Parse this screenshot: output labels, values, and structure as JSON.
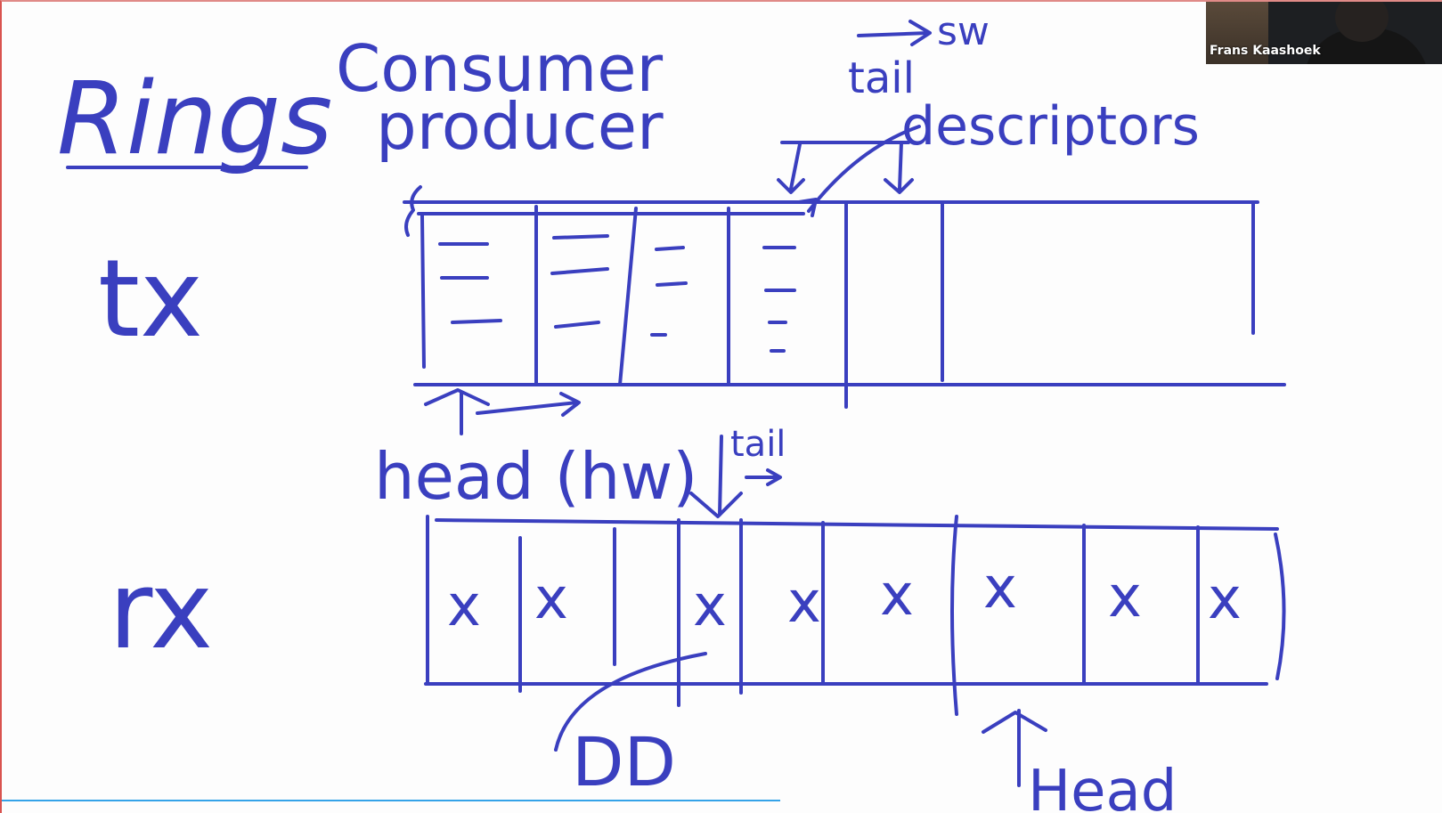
{
  "video_tile": {
    "participant_name": "Frans Kaashoek"
  },
  "whiteboard": {
    "title": "Rings",
    "label_consumer": "Consumer",
    "label_producer": "producer",
    "label_tail_sw_tx": "tail",
    "label_sw": "sw",
    "label_descriptors": "descriptors",
    "label_tx": "tx",
    "label_head_hw": "head (hw)",
    "label_tail_rx": "tail",
    "label_rx": "rx",
    "label_dd": "DD",
    "label_head_rx": "Head",
    "cell_mark": "x",
    "ink_color": "#3a3fbf"
  },
  "playback": {
    "progress_fraction": 0.54
  }
}
